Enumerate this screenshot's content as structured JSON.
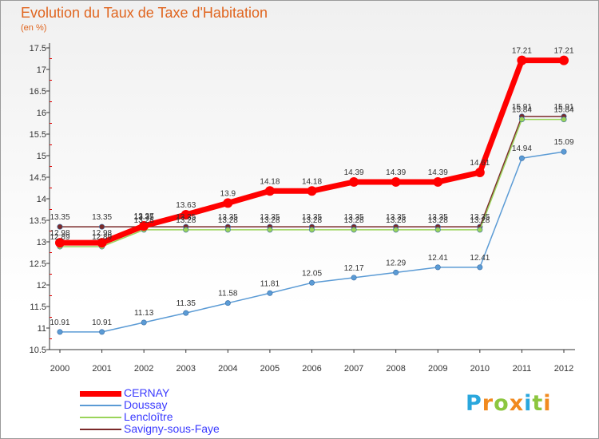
{
  "title": "Evolution du Taux de Taxe d'Habitation",
  "subtitle": "(en %)",
  "logo": {
    "letters": [
      "P",
      "r",
      "o",
      "x",
      "i",
      "t",
      "i"
    ],
    "colors": [
      "#2aa7dd",
      "#f18a1f",
      "#8cc63f",
      "#f18a1f",
      "#2aa7dd",
      "#8cc63f",
      "#f18a1f"
    ]
  },
  "chart_data": {
    "type": "line",
    "title": "Evolution du Taux de Taxe d'Habitation",
    "ylabel": "(en %)",
    "xlabel": "",
    "x": [
      "2000",
      "2001",
      "2002",
      "2003",
      "2004",
      "2005",
      "2006",
      "2007",
      "2008",
      "2009",
      "2010",
      "2011",
      "2012"
    ],
    "ylim": [
      10.5,
      17.5
    ],
    "yticks": [
      "10.5",
      "11",
      "11.5",
      "12",
      "12.5",
      "13",
      "13.5",
      "14",
      "14.5",
      "15",
      "15.5",
      "16",
      "16.5",
      "17",
      "17.5"
    ],
    "grid": false,
    "legend_position": "bottom-left",
    "series": [
      {
        "name": "Savigny-sous-Faye",
        "color": "#7b2a2a",
        "values": [
          13.35,
          13.35,
          13.35,
          13.35,
          13.35,
          13.35,
          13.35,
          13.35,
          13.35,
          13.35,
          13.35,
          15.91,
          15.91
        ],
        "labels": [
          "13.35",
          "13.35",
          "13.35",
          "13.35",
          "13.35",
          "13.35",
          "13.35",
          "13.35",
          "13.35",
          "13.35",
          "13.35",
          "15.91",
          "15.91"
        ]
      },
      {
        "name": "Lencloître",
        "color": "#9ad45a",
        "values": [
          12.89,
          12.89,
          13.28,
          13.28,
          13.28,
          13.28,
          13.28,
          13.28,
          13.28,
          13.28,
          13.28,
          15.84,
          15.84
        ],
        "labels": [
          "12.89",
          "12.89",
          "13.28",
          "13.28",
          "13.28",
          "13.28",
          "13.28",
          "13.28",
          "13.28",
          "13.28",
          "13.28",
          "15.84",
          "15.84"
        ]
      },
      {
        "name": "Doussay",
        "color": "#5b9bd5",
        "values": [
          10.91,
          10.91,
          11.13,
          11.35,
          11.58,
          11.81,
          12.05,
          12.17,
          12.29,
          12.41,
          12.41,
          14.94,
          15.09
        ],
        "labels": [
          "10.91",
          "10.91",
          "11.13",
          "11.35",
          "11.58",
          "11.81",
          "12.05",
          "12.17",
          "12.29",
          "12.41",
          "12.41",
          "14.94",
          "15.09"
        ]
      },
      {
        "name": "CERNAY",
        "color": "#ff0000",
        "values": [
          12.98,
          12.98,
          13.37,
          13.63,
          13.9,
          14.18,
          14.18,
          14.39,
          14.39,
          14.39,
          14.61,
          17.21,
          17.21
        ],
        "labels": [
          "12.98",
          "12.98",
          "13.37",
          "13.63",
          "13.9",
          "14.18",
          "14.18",
          "14.39",
          "14.39",
          "14.39",
          "14.61",
          "17.21",
          "17.21"
        ]
      }
    ]
  },
  "legend": [
    {
      "label": "CERNAY",
      "color": "#ff0000",
      "thickness": 7
    },
    {
      "label": "Doussay",
      "color": "#5b9bd5",
      "thickness": 2
    },
    {
      "label": "Lencloître",
      "color": "#9ad45a",
      "thickness": 2
    },
    {
      "label": "Savigny-sous-Faye",
      "color": "#7b2a2a",
      "thickness": 2
    }
  ]
}
